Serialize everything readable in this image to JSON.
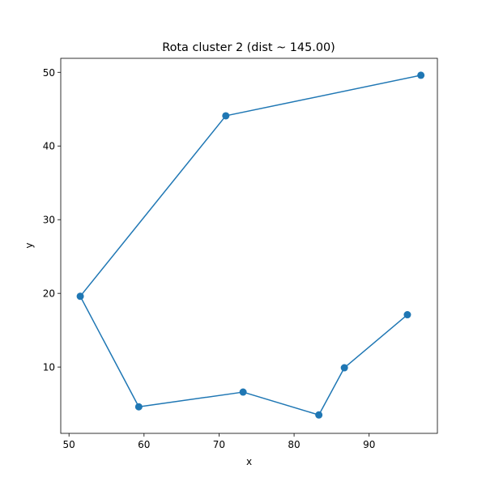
{
  "chart_data": {
    "type": "line",
    "title": "Rota cluster 2 (dist ~ 145.00)",
    "xlabel": "x",
    "ylabel": "y",
    "xlim": [
      48.9,
      99.1
    ],
    "ylim": [
      1.0,
      51.9
    ],
    "xticks": [
      50,
      60,
      70,
      80,
      90
    ],
    "yticks": [
      10,
      20,
      30,
      40,
      50
    ],
    "grid": false,
    "markers": true,
    "line_color": "#1f77b4",
    "series": [
      {
        "x": [
          96.9,
          70.9,
          51.5,
          59.3,
          73.2,
          83.3,
          86.7,
          95.1
        ],
        "y": [
          49.6,
          44.1,
          19.6,
          4.6,
          6.6,
          3.5,
          9.9,
          17.1
        ]
      }
    ]
  }
}
